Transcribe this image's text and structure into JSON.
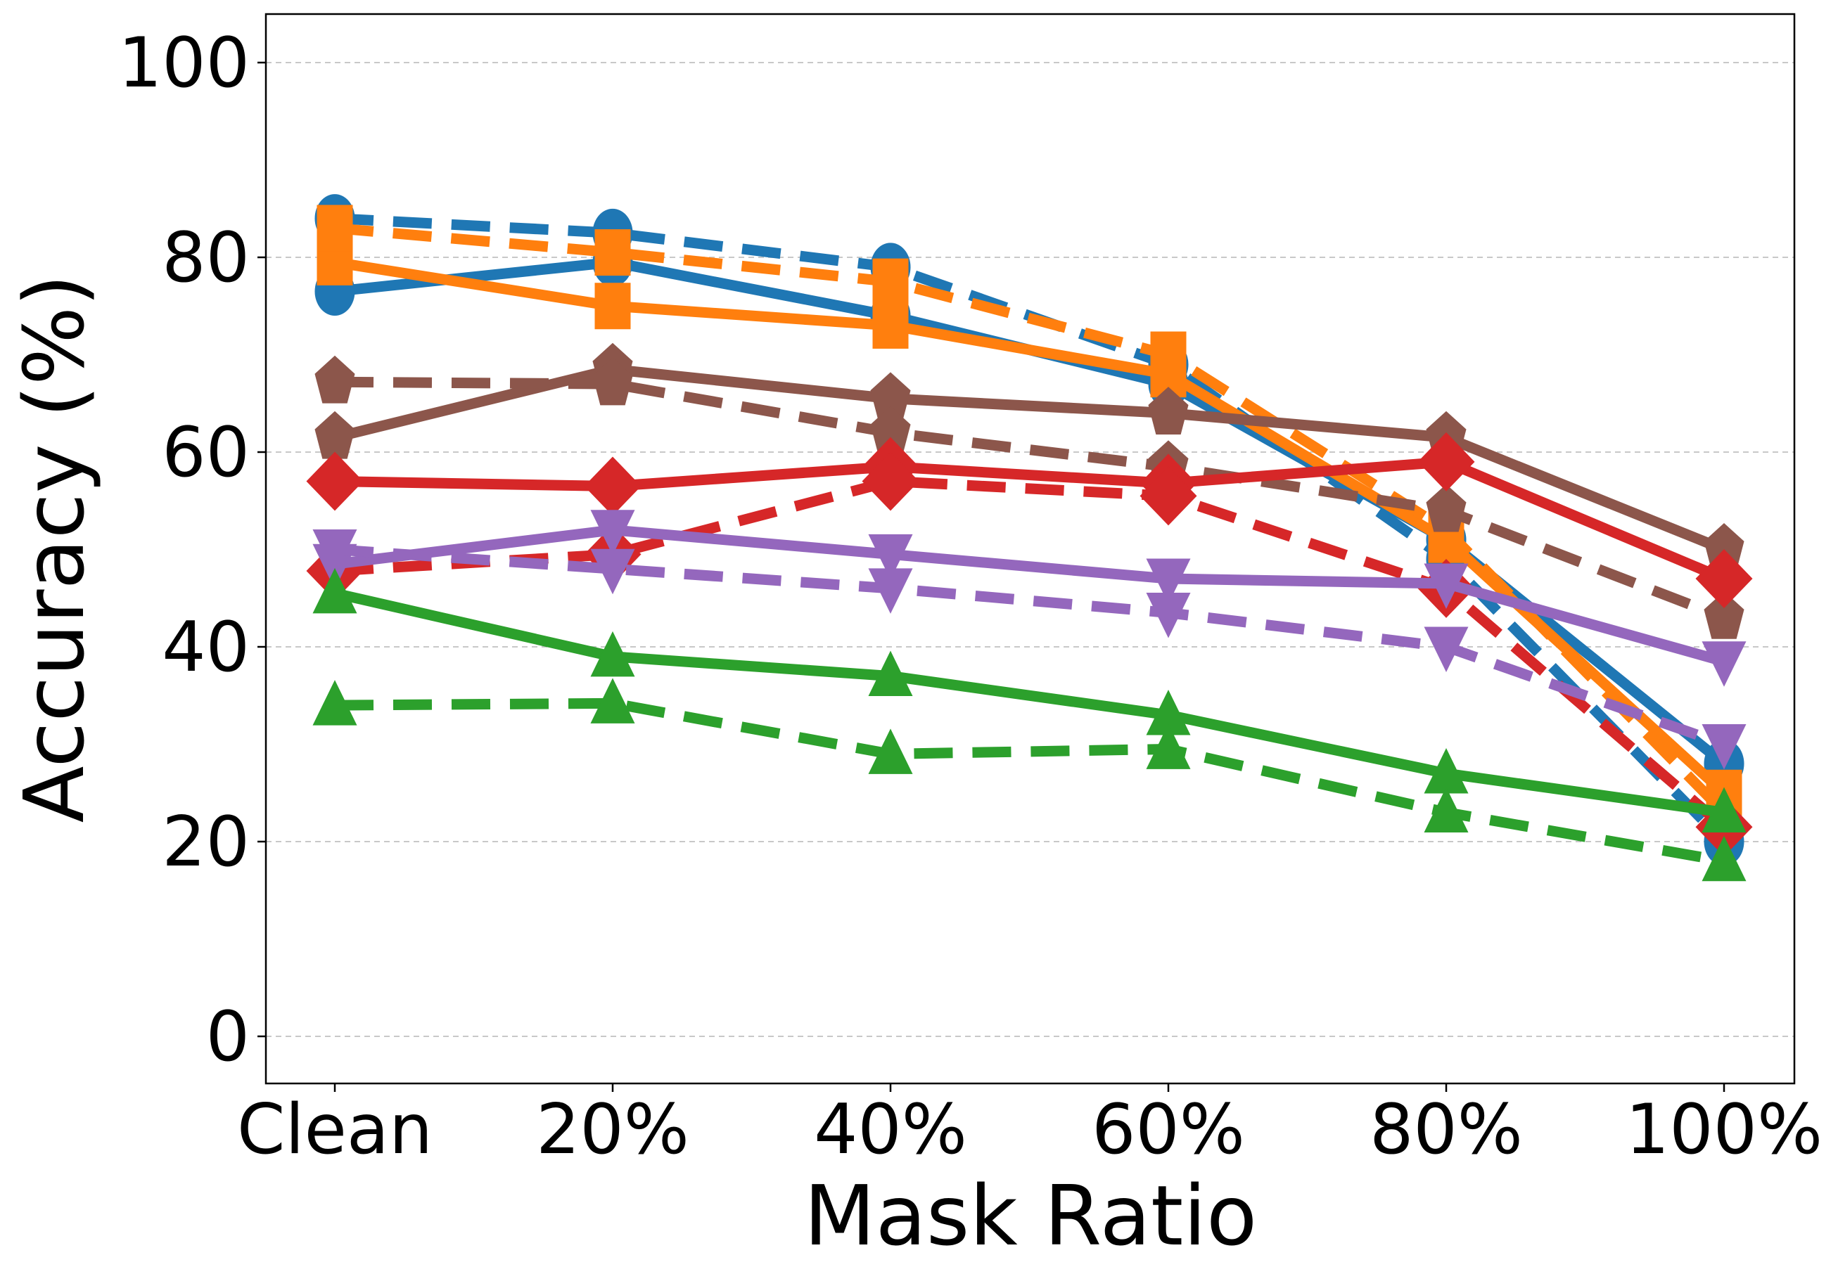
{
  "chart_data": {
    "type": "line",
    "title": "",
    "xlabel": "Mask Ratio",
    "ylabel": "Accuracy (%)",
    "categories": [
      "Clean",
      "20%",
      "40%",
      "60%",
      "80%",
      "100%"
    ],
    "yticks": [
      "0",
      "20",
      "40",
      "60",
      "80",
      "100"
    ],
    "ylim": [
      -5,
      105
    ],
    "grid": "horizontal dashed",
    "legend": "none",
    "series": [
      {
        "color": "#1f77b4",
        "marker": "circle",
        "style": "solid",
        "values": [
          76.5,
          79.5,
          74,
          67,
          51,
          28
        ]
      },
      {
        "color": "#1f77b4",
        "marker": "circle",
        "style": "dashed",
        "values": [
          84,
          82.5,
          79,
          69,
          49,
          20
        ]
      },
      {
        "color": "#ff7f0e",
        "marker": "square",
        "style": "solid",
        "values": [
          79.5,
          75,
          73,
          68,
          51,
          25
        ]
      },
      {
        "color": "#ff7f0e",
        "marker": "square",
        "style": "dashed",
        "values": [
          83,
          80.5,
          77.5,
          70,
          52,
          23
        ]
      },
      {
        "color": "#8c564b",
        "marker": "pentagon",
        "style": "solid",
        "values": [
          61.5,
          68.5,
          65.5,
          64,
          61.5,
          50
        ]
      },
      {
        "color": "#8c564b",
        "marker": "pentagon",
        "style": "dashed",
        "values": [
          67.2,
          67,
          62,
          58.5,
          54,
          43
        ]
      },
      {
        "color": "#d62728",
        "marker": "diamond",
        "style": "solid",
        "values": [
          57,
          56.5,
          58.5,
          56.8,
          59,
          47
        ]
      },
      {
        "color": "#d62728",
        "marker": "diamond",
        "style": "dashed",
        "values": [
          47.8,
          49.5,
          57,
          55.5,
          46,
          21.5
        ]
      },
      {
        "color": "#9467bd",
        "marker": "triangle-down",
        "style": "solid",
        "values": [
          48.5,
          52,
          49.5,
          47,
          46.5,
          38.5
        ]
      },
      {
        "color": "#9467bd",
        "marker": "triangle-down",
        "style": "dashed",
        "values": [
          50,
          48,
          46,
          43.5,
          40,
          30
        ]
      },
      {
        "color": "#2ca02c",
        "marker": "triangle-up",
        "style": "solid",
        "values": [
          45.5,
          39,
          37,
          33,
          27,
          23
        ]
      },
      {
        "color": "#2ca02c",
        "marker": "triangle-up",
        "style": "dashed",
        "values": [
          34,
          34.2,
          29,
          29.5,
          23,
          18
        ]
      }
    ]
  }
}
